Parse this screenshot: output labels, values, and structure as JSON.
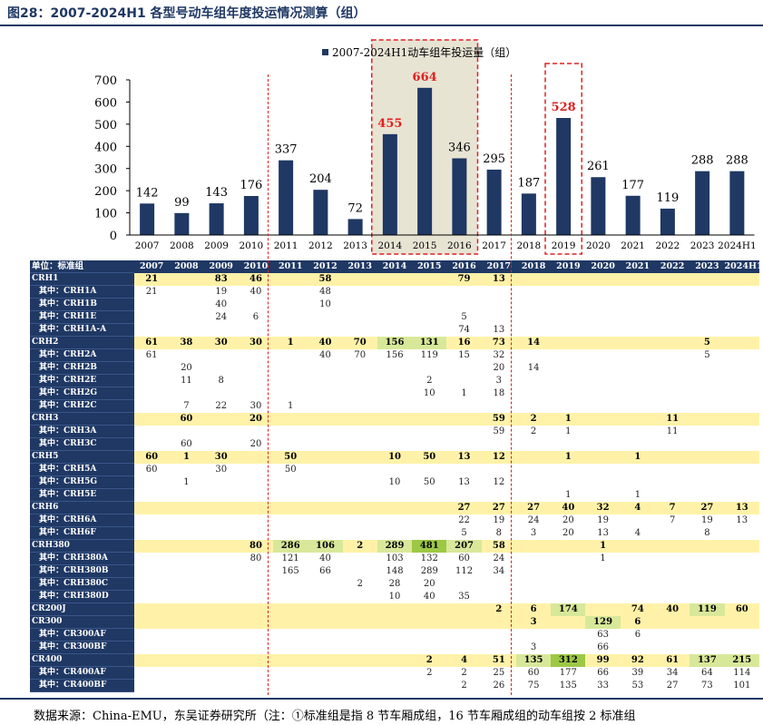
{
  "figure_title": "图28：2007-2024H1 各型号动车组年度投运情况测算（组）",
  "footer": "数据来源：China-EMU，东吴证券研究所（注：①标准组是指 8 节车厢成组，16 节车厢成组的动车组按 2 标准组",
  "colors": {
    "bar": "#1f3864",
    "highlight_label": "#e02020",
    "highlight_box": "#e8e4d4",
    "dash": "#e02020"
  },
  "chart_data": {
    "type": "bar",
    "legend": "2007-2024H1动车组年投运量（组）",
    "legend_position": "top-center",
    "categories": [
      "2007",
      "2008",
      "2009",
      "2010",
      "2011",
      "2012",
      "2013",
      "2014",
      "2015",
      "2016",
      "2017",
      "2018",
      "2019",
      "2020",
      "2021",
      "2022",
      "2023",
      "2024H1"
    ],
    "values": [
      142,
      99,
      143,
      176,
      337,
      204,
      72,
      455,
      664,
      346,
      295,
      187,
      528,
      261,
      177,
      119,
      288,
      288
    ],
    "highlighted": [
      "2014",
      "2015",
      "2019"
    ],
    "highlight_box_years": [
      "2014",
      "2016",
      "2019"
    ],
    "ylim": [
      0,
      700
    ],
    "yticks": [
      0,
      100,
      200,
      300,
      400,
      500,
      600,
      700
    ]
  },
  "table": {
    "unit_label": "单位：标准组",
    "years": [
      "2007",
      "2008",
      "2009",
      "2010",
      "2011",
      "2012",
      "2013",
      "2014",
      "2015",
      "2016",
      "2017",
      "2018",
      "2019",
      "2020",
      "2021",
      "2022",
      "2023",
      "2024H1"
    ],
    "rows": [
      {
        "label": "CRH1",
        "kind": "model",
        "cells": [
          "21",
          "",
          "83",
          "46",
          "",
          "58",
          "",
          "",
          "",
          "79",
          "13",
          "",
          "",
          "",
          "",
          "",
          "",
          ""
        ]
      },
      {
        "label": "其中：CRH1A",
        "kind": "sub",
        "cells": [
          "21",
          "",
          "19",
          "40",
          "",
          "48",
          "",
          "",
          "",
          "",
          "",
          "",
          "",
          "",
          "",
          "",
          "",
          ""
        ]
      },
      {
        "label": "其中：CRH1B",
        "kind": "sub",
        "cells": [
          "",
          "",
          "40",
          "",
          "",
          "10",
          "",
          "",
          "",
          "",
          "",
          "",
          "",
          "",
          "",
          "",
          "",
          ""
        ]
      },
      {
        "label": "其中：CRH1E",
        "kind": "sub",
        "cells": [
          "",
          "",
          "24",
          "6",
          "",
          "",
          "",
          "",
          "",
          "5",
          "",
          "",
          "",
          "",
          "",
          "",
          "",
          ""
        ]
      },
      {
        "label": "其中：CRH1A-A",
        "kind": "sub",
        "cells": [
          "",
          "",
          "",
          "",
          "",
          "",
          "",
          "",
          "",
          "74",
          "13",
          "",
          "",
          "",
          "",
          "",
          "",
          ""
        ]
      },
      {
        "label": "CRH2",
        "kind": "model",
        "cells": [
          "61",
          "38",
          "30",
          "30",
          "1",
          "40",
          "70",
          "156",
          "131",
          "16",
          "73",
          "14",
          "",
          "",
          "",
          "",
          "5",
          ""
        ]
      },
      {
        "label": "其中：CRH2A",
        "kind": "sub",
        "cells": [
          "61",
          "",
          "",
          "",
          "",
          "40",
          "70",
          "156",
          "119",
          "15",
          "32",
          "",
          "",
          "",
          "",
          "",
          "5",
          ""
        ]
      },
      {
        "label": "其中：CRH2B",
        "kind": "sub",
        "cells": [
          "",
          "20",
          "",
          "",
          "",
          "",
          "",
          "",
          "",
          "",
          "20",
          "14",
          "",
          "",
          "",
          "",
          "",
          ""
        ]
      },
      {
        "label": "其中：CRH2E",
        "kind": "sub",
        "cells": [
          "",
          "11",
          "8",
          "",
          "",
          "",
          "",
          "",
          "2",
          "",
          "3",
          "",
          "",
          "",
          "",
          "",
          "",
          ""
        ]
      },
      {
        "label": "其中：CRH2G",
        "kind": "sub",
        "cells": [
          "",
          "",
          "",
          "",
          "",
          "",
          "",
          "",
          "10",
          "1",
          "18",
          "",
          "",
          "",
          "",
          "",
          "",
          ""
        ]
      },
      {
        "label": "其中：CRH2C",
        "kind": "sub",
        "cells": [
          "",
          "7",
          "22",
          "30",
          "1",
          "",
          "",
          "",
          "",
          "",
          "",
          "",
          "",
          "",
          "",
          "",
          "",
          ""
        ]
      },
      {
        "label": "CRH3",
        "kind": "model",
        "cells": [
          "",
          "60",
          "",
          "20",
          "",
          "",
          "",
          "",
          "",
          "",
          "59",
          "2",
          "1",
          "",
          "",
          "11",
          "",
          ""
        ]
      },
      {
        "label": "其中：CRH3A",
        "kind": "sub",
        "cells": [
          "",
          "",
          "",
          "",
          "",
          "",
          "",
          "",
          "",
          "",
          "59",
          "2",
          "1",
          "",
          "",
          "11",
          "",
          ""
        ]
      },
      {
        "label": "其中：CRH3C",
        "kind": "sub",
        "cells": [
          "",
          "60",
          "",
          "20",
          "",
          "",
          "",
          "",
          "",
          "",
          "",
          "",
          "",
          "",
          "",
          "",
          "",
          ""
        ]
      },
      {
        "label": "CRH5",
        "kind": "model",
        "cells": [
          "60",
          "1",
          "30",
          "",
          "50",
          "",
          "",
          "10",
          "50",
          "13",
          "12",
          "",
          "1",
          "",
          "1",
          "",
          "",
          ""
        ]
      },
      {
        "label": "其中：CRH5A",
        "kind": "sub",
        "cells": [
          "60",
          "",
          "30",
          "",
          "50",
          "",
          "",
          "",
          "",
          "",
          "",
          "",
          "",
          "",
          "",
          "",
          "",
          ""
        ]
      },
      {
        "label": "其中：CRH5G",
        "kind": "sub",
        "cells": [
          "",
          "1",
          "",
          "",
          "",
          "",
          "",
          "10",
          "50",
          "13",
          "12",
          "",
          "",
          "",
          "",
          "",
          "",
          ""
        ]
      },
      {
        "label": "其中：CRH5E",
        "kind": "sub",
        "cells": [
          "",
          "",
          "",
          "",
          "",
          "",
          "",
          "",
          "",
          "",
          "",
          "",
          "1",
          "",
          "1",
          "",
          "",
          ""
        ]
      },
      {
        "label": "CRH6",
        "kind": "model",
        "cells": [
          "",
          "",
          "",
          "",
          "",
          "",
          "",
          "",
          "",
          "27",
          "27",
          "27",
          "40",
          "32",
          "4",
          "7",
          "27",
          "13"
        ]
      },
      {
        "label": "其中：CRH6A",
        "kind": "sub",
        "cells": [
          "",
          "",
          "",
          "",
          "",
          "",
          "",
          "",
          "",
          "22",
          "19",
          "24",
          "20",
          "19",
          "",
          "7",
          "19",
          "13"
        ]
      },
      {
        "label": "其中：CRH6F",
        "kind": "sub",
        "cells": [
          "",
          "",
          "",
          "",
          "",
          "",
          "",
          "",
          "",
          "5",
          "8",
          "3",
          "20",
          "13",
          "4",
          "",
          "8",
          ""
        ]
      },
      {
        "label": "CRH380",
        "kind": "model",
        "cells": [
          "",
          "",
          "",
          "80",
          "286",
          "106",
          "2",
          "289",
          "481",
          "207",
          "58",
          "",
          "",
          "1",
          "",
          "",
          "",
          ""
        ]
      },
      {
        "label": "其中：CRH380A",
        "kind": "sub",
        "cells": [
          "",
          "",
          "",
          "80",
          "121",
          "40",
          "",
          "103",
          "132",
          "60",
          "24",
          "",
          "",
          "1",
          "",
          "",
          "",
          ""
        ]
      },
      {
        "label": "其中：CRH380B",
        "kind": "sub",
        "cells": [
          "",
          "",
          "",
          "",
          "165",
          "66",
          "",
          "148",
          "289",
          "112",
          "34",
          "",
          "",
          "",
          "",
          "",
          "",
          ""
        ]
      },
      {
        "label": "其中：CRH380C",
        "kind": "sub",
        "cells": [
          "",
          "",
          "",
          "",
          "",
          "",
          "2",
          "28",
          "20",
          "",
          "",
          "",
          "",
          "",
          "",
          "",
          "",
          ""
        ]
      },
      {
        "label": "其中：CRH380D",
        "kind": "sub",
        "cells": [
          "",
          "",
          "",
          "",
          "",
          "",
          "",
          "10",
          "40",
          "35",
          "",
          "",
          "",
          "",
          "",
          "",
          "",
          ""
        ]
      },
      {
        "label": "CR200J",
        "kind": "model",
        "cells": [
          "",
          "",
          "",
          "",
          "",
          "",
          "",
          "",
          "",
          "",
          "2",
          "6",
          "174",
          "",
          "74",
          "40",
          "119",
          "60"
        ]
      },
      {
        "label": "CR300",
        "kind": "model",
        "cells": [
          "",
          "",
          "",
          "",
          "",
          "",
          "",
          "",
          "",
          "",
          "",
          "3",
          "",
          "129",
          "6",
          "",
          "",
          ""
        ]
      },
      {
        "label": "其中：CR300AF",
        "kind": "sub",
        "cells": [
          "",
          "",
          "",
          "",
          "",
          "",
          "",
          "",
          "",
          "",
          "",
          "",
          "",
          "63",
          "6",
          "",
          "",
          ""
        ]
      },
      {
        "label": "其中：CR300BF",
        "kind": "sub",
        "cells": [
          "",
          "",
          "",
          "",
          "",
          "",
          "",
          "",
          "",
          "",
          "",
          "3",
          "",
          "66",
          "",
          "",
          "",
          ""
        ]
      },
      {
        "label": "CR400",
        "kind": "model",
        "cells": [
          "",
          "",
          "",
          "",
          "",
          "",
          "",
          "",
          "2",
          "4",
          "51",
          "135",
          "312",
          "99",
          "92",
          "61",
          "137",
          "215"
        ]
      },
      {
        "label": "其中：CR400AF",
        "kind": "sub",
        "cells": [
          "",
          "",
          "",
          "",
          "",
          "",
          "",
          "",
          "2",
          "2",
          "25",
          "60",
          "177",
          "66",
          "39",
          "34",
          "64",
          "114"
        ]
      },
      {
        "label": "其中：CR400BF",
        "kind": "sub",
        "cells": [
          "",
          "",
          "",
          "",
          "",
          "",
          "",
          "",
          "",
          "2",
          "26",
          "75",
          "135",
          "33",
          "53",
          "27",
          "73",
          "101"
        ]
      }
    ]
  }
}
